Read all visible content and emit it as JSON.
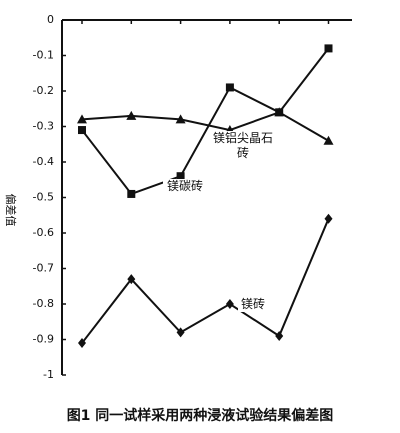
{
  "chart_data": {
    "type": "line",
    "caption": "图1  同一试样采用两种浸液试验结果偏差图",
    "y_label": "偏差值",
    "categories": [
      null,
      null,
      null,
      null,
      null,
      null
    ],
    "series": [
      {
        "name": "镁碳砖",
        "color": "#111111",
        "marker": "square",
        "values": [
          -0.31,
          -0.49,
          -0.44,
          -0.19,
          -0.26,
          -0.08
        ]
      },
      {
        "name": "镁铝尖晶石砖",
        "color": "#111111",
        "marker": "triangle",
        "values": [
          -0.28,
          -0.27,
          -0.28,
          -0.31,
          -0.26,
          -0.34
        ]
      },
      {
        "name": "镁砖",
        "color": "#111111",
        "marker": "diamond",
        "values": [
          -0.91,
          -0.73,
          -0.88,
          -0.8,
          -0.89,
          -0.56
        ]
      }
    ],
    "ylim": [
      -1,
      0
    ],
    "yticks": [
      0,
      -0.1,
      -0.2,
      -0.3,
      -0.4,
      -0.5,
      -0.6,
      -0.7,
      -0.8,
      -0.9,
      -1
    ]
  }
}
